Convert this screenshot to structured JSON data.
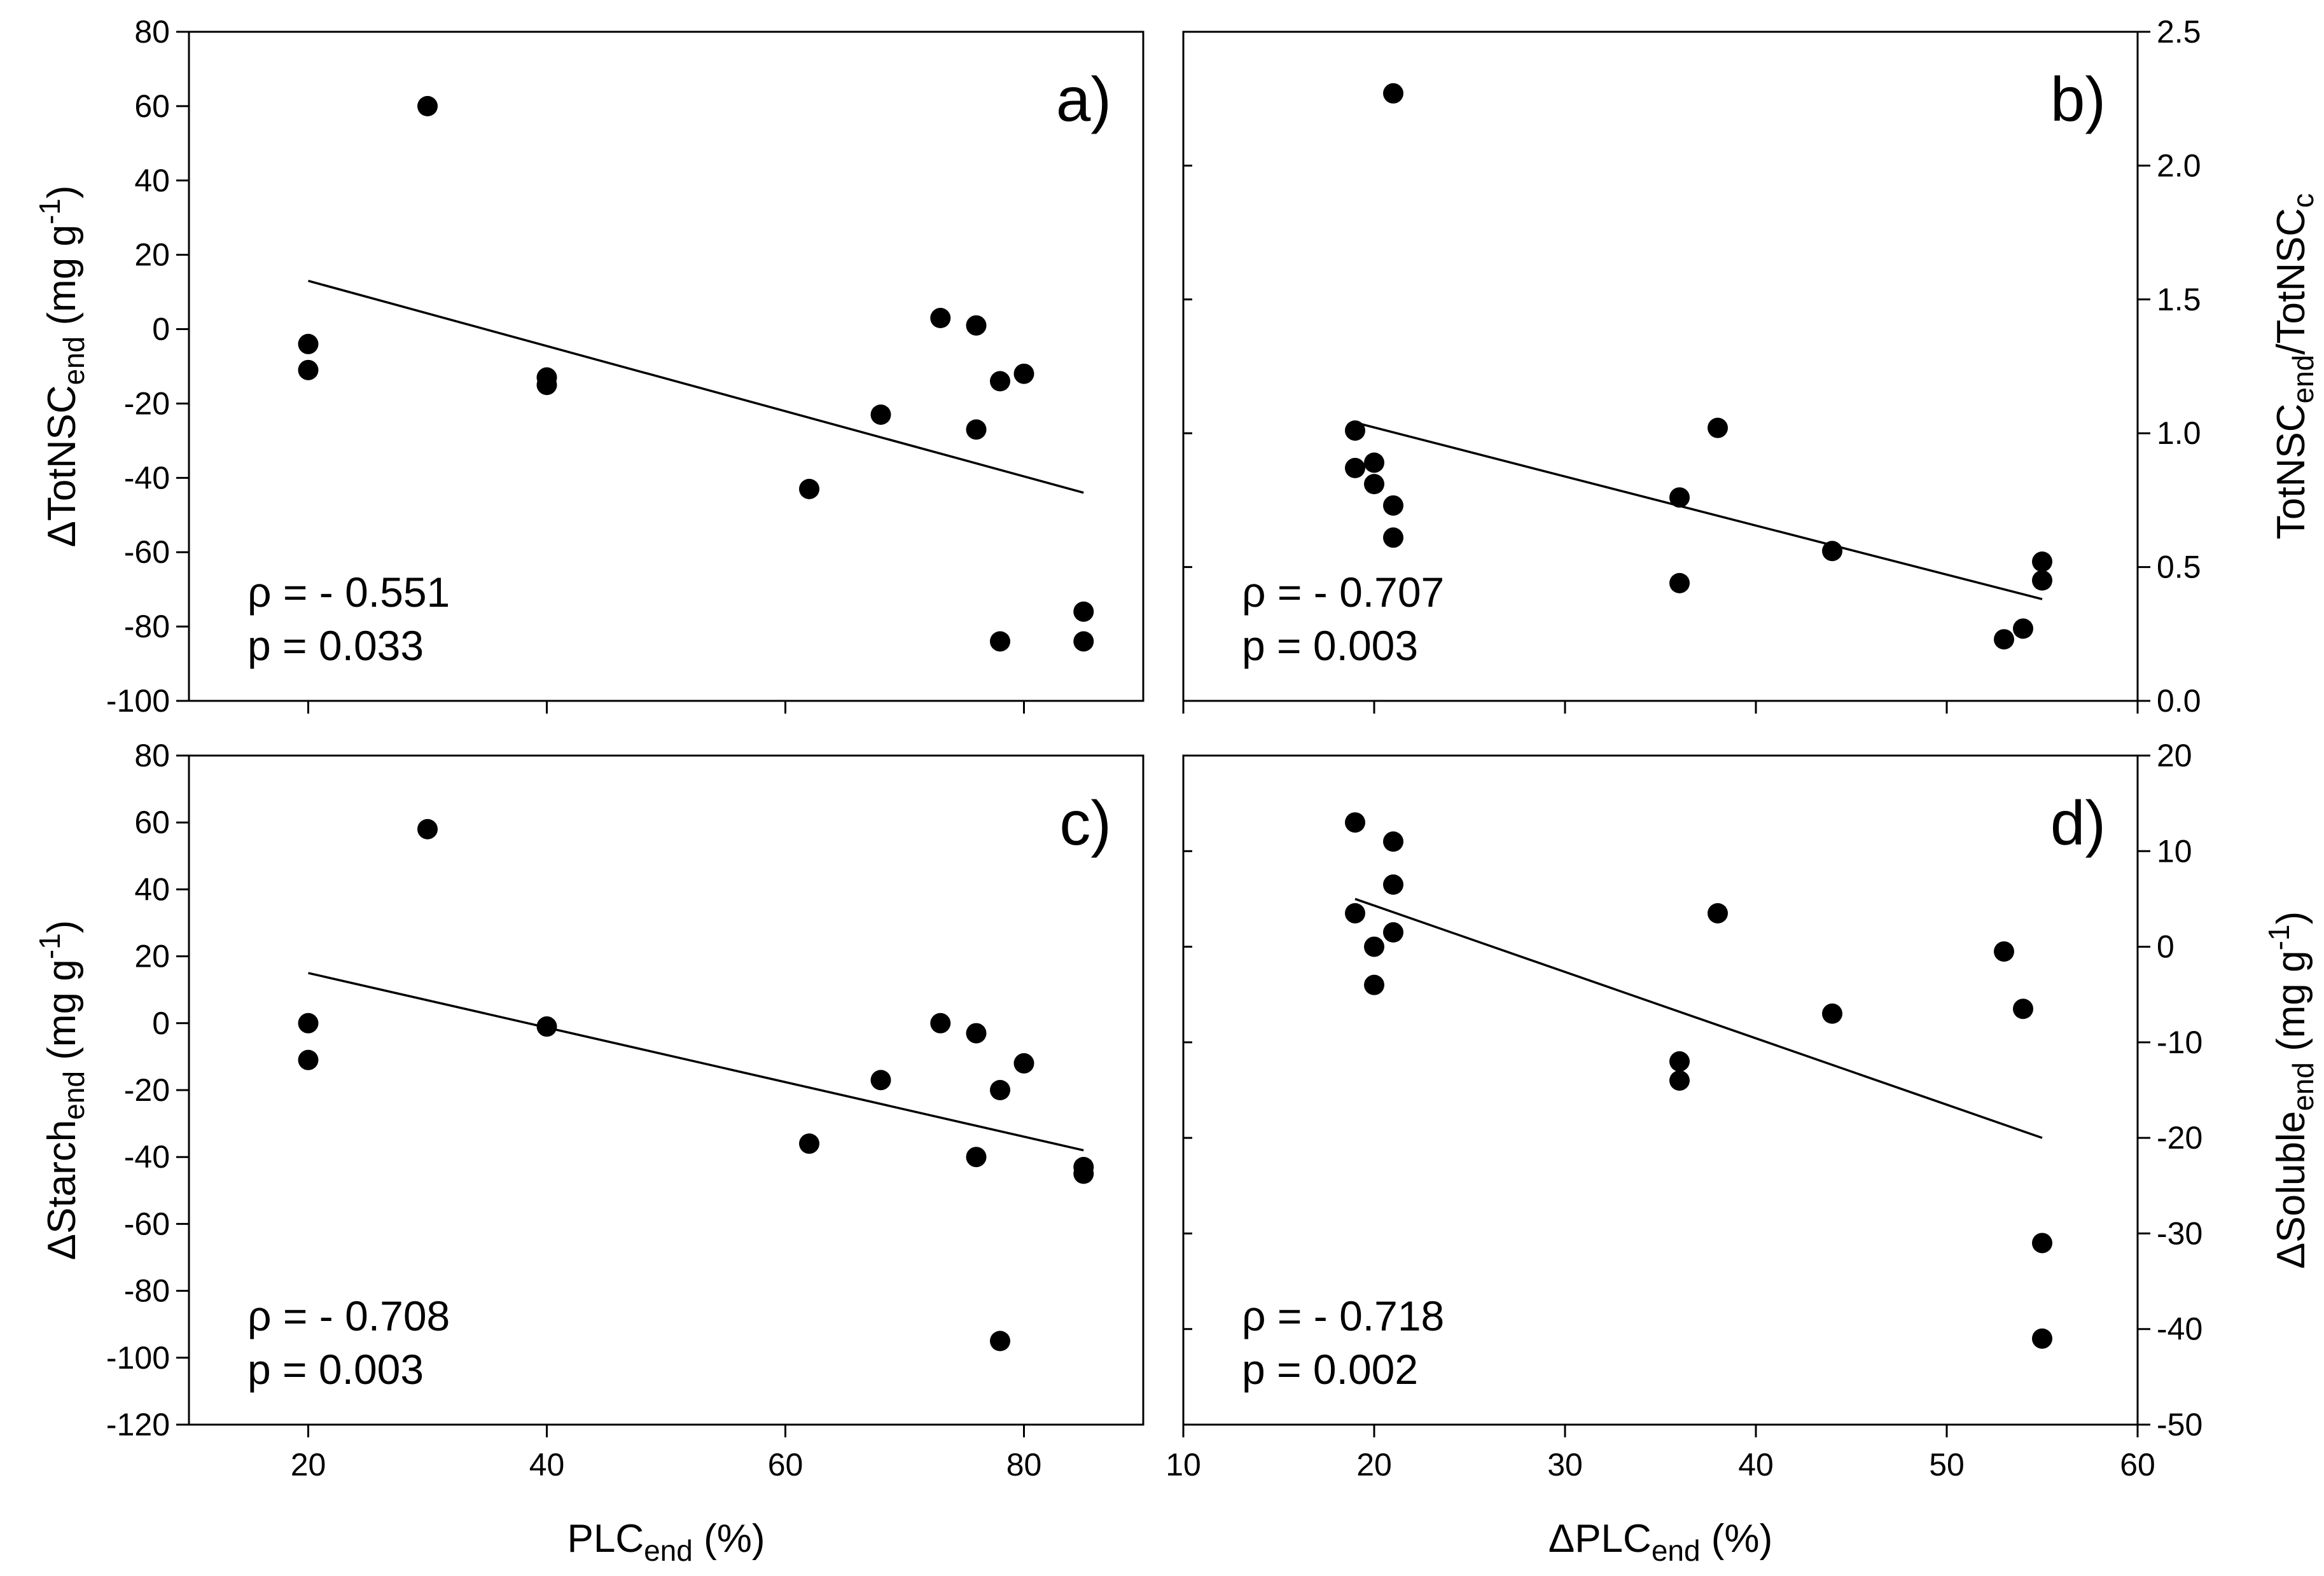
{
  "chart_data": [
    {
      "type": "scatter",
      "panel_label": "a)",
      "xlabel": "PLCend (%)",
      "ylabel": "ΔTotNSCend (mg g-1)",
      "xlim": [
        10,
        90
      ],
      "ylim": [
        -100,
        80
      ],
      "yticks": [
        -100,
        -80,
        -60,
        -40,
        -20,
        0,
        20,
        40,
        60,
        80
      ],
      "xticks": [
        20,
        40,
        60,
        80
      ],
      "points": [
        [
          20,
          -4
        ],
        [
          20,
          -11
        ],
        [
          30,
          60
        ],
        [
          40,
          -13
        ],
        [
          40,
          -15
        ],
        [
          62,
          -43
        ],
        [
          68,
          -23
        ],
        [
          73,
          3
        ],
        [
          76,
          1
        ],
        [
          76,
          -27
        ],
        [
          78,
          -14
        ],
        [
          78,
          -84
        ],
        [
          80,
          -12
        ],
        [
          85,
          -76
        ],
        [
          85,
          -84
        ]
      ],
      "fit_line": [
        [
          20,
          13
        ],
        [
          85,
          -44
        ]
      ],
      "stats": [
        "ρ = - 0.551",
        "p = 0.033"
      ]
    },
    {
      "type": "scatter",
      "panel_label": "b)",
      "xlabel": "ΔPLCend (%)",
      "ylabel": "TotNSCend/TotNSCc",
      "xlim": [
        10,
        60
      ],
      "ylim": [
        0,
        2.5
      ],
      "yticks": [
        "0.0",
        "0.5",
        "1.0",
        "1.5",
        "2.0",
        "2.5"
      ],
      "xticks": [
        10,
        20,
        30,
        40,
        50,
        60
      ],
      "points": [
        [
          19,
          1.01
        ],
        [
          19,
          0.87
        ],
        [
          20,
          0.89
        ],
        [
          20,
          0.81
        ],
        [
          21,
          0.73
        ],
        [
          21,
          0.61
        ],
        [
          21,
          2.27
        ],
        [
          36,
          0.76
        ],
        [
          36,
          0.44
        ],
        [
          38,
          1.02
        ],
        [
          44,
          0.56
        ],
        [
          53,
          0.23
        ],
        [
          54,
          0.27
        ],
        [
          55,
          0.52
        ],
        [
          55,
          0.45
        ]
      ],
      "fit_line": [
        [
          19,
          1.04
        ],
        [
          55,
          0.38
        ]
      ],
      "stats": [
        "ρ = - 0.707",
        "p = 0.003"
      ]
    },
    {
      "type": "scatter",
      "panel_label": "c)",
      "xlabel": "PLCend (%)",
      "ylabel": "ΔStarchend (mg g-1)",
      "xlim": [
        10,
        90
      ],
      "ylim": [
        -120,
        80
      ],
      "yticks": [
        -120,
        -100,
        -80,
        -60,
        -40,
        -20,
        0,
        20,
        40,
        60,
        80
      ],
      "xticks": [
        20,
        40,
        60,
        80
      ],
      "points": [
        [
          20,
          0
        ],
        [
          20,
          -11
        ],
        [
          30,
          58
        ],
        [
          40,
          -1
        ],
        [
          62,
          -36
        ],
        [
          68,
          -17
        ],
        [
          73,
          0
        ],
        [
          76,
          -3
        ],
        [
          76,
          -40
        ],
        [
          78,
          -20
        ],
        [
          78,
          -95
        ],
        [
          80,
          -12
        ],
        [
          85,
          -43
        ],
        [
          85,
          -45
        ]
      ],
      "fit_line": [
        [
          20,
          15
        ],
        [
          85,
          -38
        ]
      ],
      "stats": [
        "ρ = - 0.708",
        "p = 0.003"
      ]
    },
    {
      "type": "scatter",
      "panel_label": "d)",
      "xlabel": "ΔPLCend (%)",
      "ylabel": "ΔSolubleend (mg g-1)",
      "xlim": [
        10,
        60
      ],
      "ylim": [
        -50,
        20
      ],
      "yticks": [
        -50,
        -40,
        -30,
        -20,
        -10,
        0,
        10,
        20
      ],
      "xticks": [
        10,
        20,
        30,
        40,
        50,
        60
      ],
      "points": [
        [
          19,
          13
        ],
        [
          19,
          3.5
        ],
        [
          20,
          0
        ],
        [
          20,
          -4
        ],
        [
          21,
          11
        ],
        [
          21,
          6.5
        ],
        [
          21,
          1.5
        ],
        [
          36,
          -12
        ],
        [
          36,
          -14
        ],
        [
          38,
          3.5
        ],
        [
          44,
          -7
        ],
        [
          53,
          -0.5
        ],
        [
          54,
          -6.5
        ],
        [
          55,
          -31
        ],
        [
          55,
          -41
        ]
      ],
      "fit_line": [
        [
          19,
          5
        ],
        [
          55,
          -20
        ]
      ],
      "stats": [
        "ρ = - 0.718",
        "p = 0.002"
      ]
    }
  ],
  "axis_titles": {
    "a_y": {
      "pre": "ΔTotNSC",
      "sub": "end",
      "post": " (mg g",
      "sup": "-1",
      "end": ")"
    },
    "b_y": {
      "pre": "TotNSC",
      "sub": "end",
      "mid": "/TotNSC",
      "sub2": "c"
    },
    "c_y": {
      "pre": "ΔStarch",
      "sub": "end",
      "post": " (mg g",
      "sup": "-1",
      "end": ")"
    },
    "d_y": {
      "pre": "ΔSoluble",
      "sub": "end",
      "post": " (mg g",
      "sup": "-1",
      "end": ")"
    },
    "left_x": {
      "pre": "PLC",
      "sub": "end",
      "post": " (%)"
    },
    "right_x": {
      "pre": "ΔPLC",
      "sub": "end",
      "post": " (%)"
    }
  }
}
